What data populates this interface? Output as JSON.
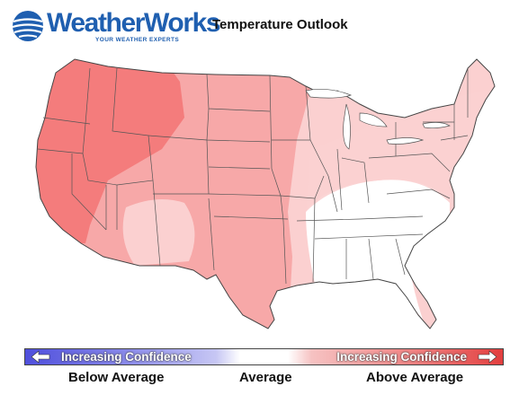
{
  "header": {
    "logo_text": "WeatherWorks",
    "logo_tagline": "YOUR WEATHER EXPERTS",
    "title": "Temperature Outlook"
  },
  "legend": {
    "left_text": "Increasing Confidence",
    "right_text": "Increasing Confidence",
    "below_label": "Below Average",
    "average_label": "Average",
    "above_label": "Above Average"
  },
  "colors": {
    "above_strong": "#f47c7c",
    "above_medium": "#f7a8a8",
    "above_light": "#fbd0d0",
    "average": "#ffffff",
    "below_strong": "#4f4fdc",
    "brand_blue": "#1f5fb0"
  },
  "map": {
    "region": "Contiguous United States",
    "outlook_zones": [
      {
        "area": "West, Northwest and Northern Rockies",
        "category": "Above Average",
        "confidence": "high"
      },
      {
        "area": "Northern and Central Plains, Southwest, Texas",
        "category": "Above Average",
        "confidence": "moderate"
      },
      {
        "area": "Great Lakes, Northeast, Mid-Atlantic, Florida",
        "category": "Above Average",
        "confidence": "low"
      },
      {
        "area": "Southeast and Tennessee Valley",
        "category": "Average",
        "confidence": ""
      }
    ]
  }
}
